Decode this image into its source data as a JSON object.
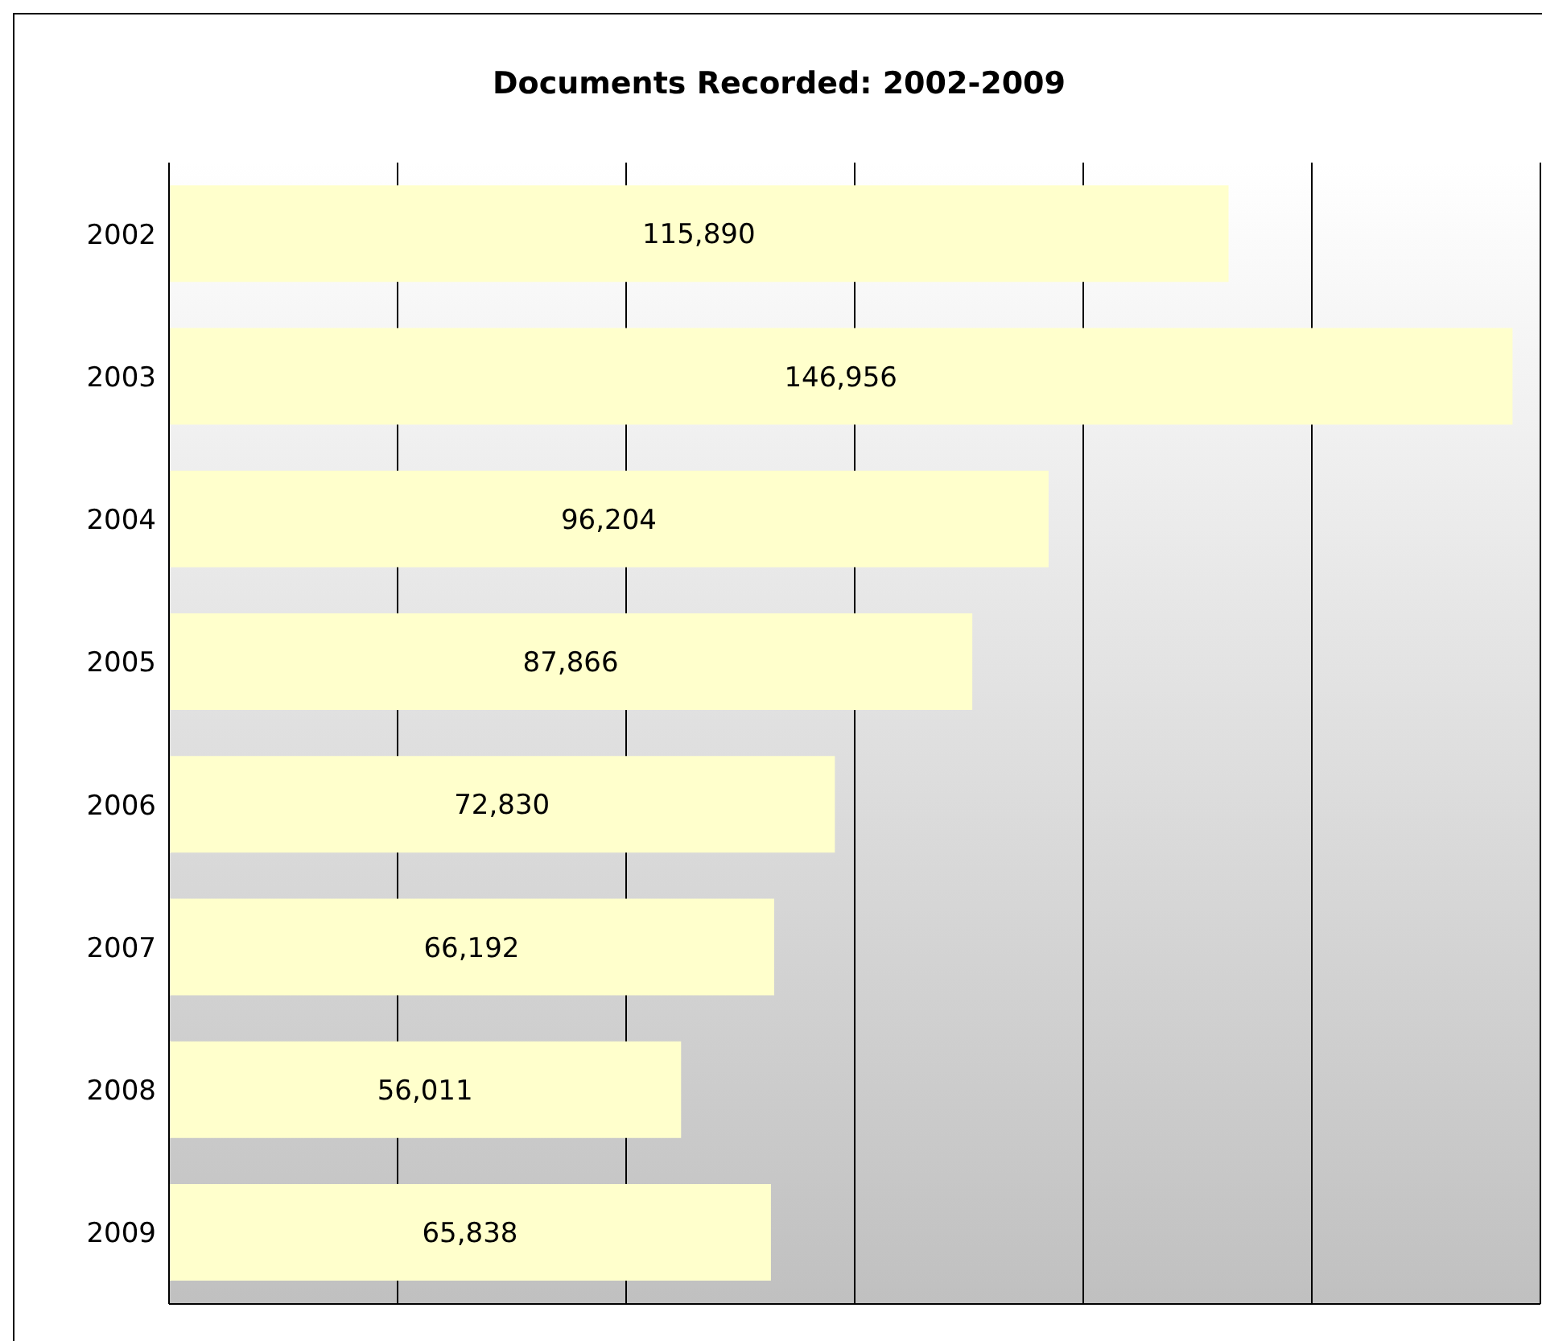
{
  "chart_data": {
    "type": "bar",
    "orientation": "horizontal",
    "title": "Documents Recorded: 2002-2009",
    "categories": [
      "2002",
      "2003",
      "2004",
      "2005",
      "2006",
      "2007",
      "2008",
      "2009"
    ],
    "values": [
      115890,
      146956,
      96204,
      87866,
      72830,
      66192,
      56011,
      65838
    ],
    "value_labels": [
      "115,890",
      "146,956",
      "96,204",
      "87,866",
      "72,830",
      "66,192",
      "56,011",
      "65,838"
    ],
    "color": "#ffffcc",
    "xlim": [
      0,
      150000
    ],
    "xticks": [
      {
        "value": 0,
        "label": null
      },
      {
        "value": 25000,
        "label": null
      },
      {
        "value": 50000,
        "label": null
      },
      {
        "value": 75000,
        "label": null
      },
      {
        "value": 100000,
        "label": null
      },
      {
        "value": 125000,
        "label": null
      },
      {
        "value": 150000,
        "label": null
      }
    ],
    "tick_labels": "y",
    "grid": "x",
    "legend": false
  }
}
